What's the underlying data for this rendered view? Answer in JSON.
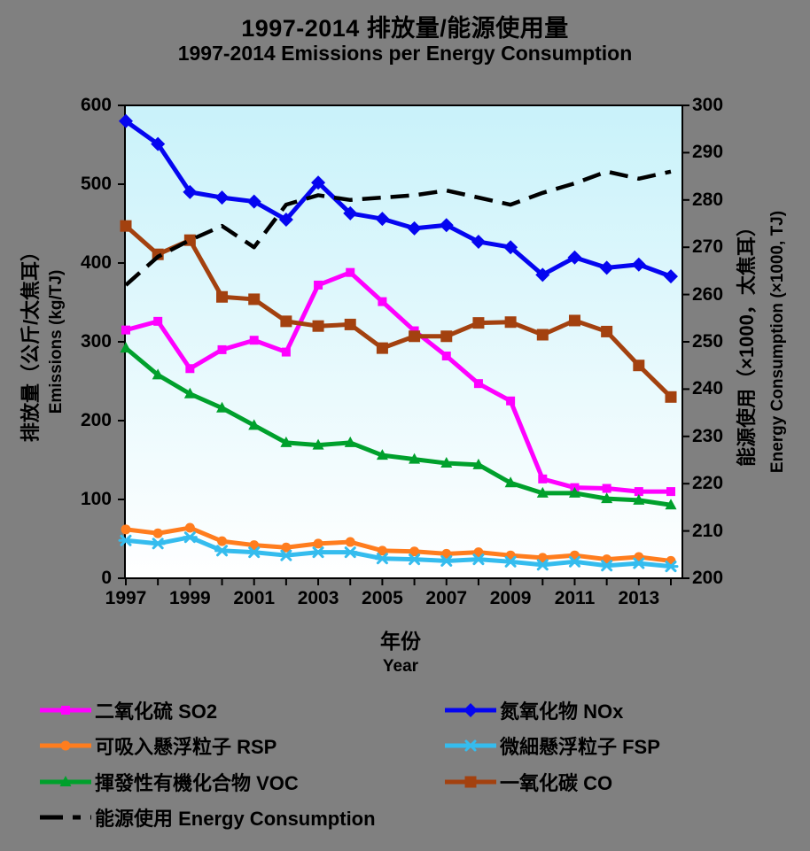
{
  "chart_data": {
    "type": "line",
    "title_zh": "1997-2014 排放量/能源使用量",
    "title_en": "1997-2014 Emissions per Energy Consumption",
    "x_axis_title_zh": "年份",
    "x_axis_title_en": "Year",
    "left_axis_title_zh": "排放量（公斤/太焦耳）",
    "left_axis_title_en": "Emissions (kg/TJ)",
    "right_axis_title_zh": "能源使用（×1000，太焦耳）",
    "right_axis_title_en": "Energy Consumption (×1000, TJ)",
    "left_ylim": [
      0,
      600
    ],
    "right_ylim": [
      200,
      300
    ],
    "left_ticks": [
      0,
      100,
      200,
      300,
      400,
      500,
      600
    ],
    "right_ticks": [
      200,
      210,
      220,
      230,
      240,
      250,
      260,
      270,
      280,
      290,
      300
    ],
    "x": [
      1997,
      1998,
      1999,
      2000,
      2001,
      2002,
      2003,
      2004,
      2005,
      2006,
      2007,
      2008,
      2009,
      2010,
      2011,
      2012,
      2013,
      2014
    ],
    "x_tick_labels": [
      "1997",
      "1999",
      "2001",
      "2003",
      "2005",
      "2007",
      "2009",
      "2011",
      "2013"
    ],
    "grid": false,
    "legend_position": "bottom",
    "plot_bg_top": "#C9F2FA",
    "plot_bg_bottom": "#FFFFFF",
    "outer_bg": "#808080",
    "series": [
      {
        "key": "so2",
        "name": "二氧化硫 SO2",
        "axis": "left",
        "color": "#FF00FF",
        "marker": "square",
        "dashed": false,
        "values": [
          315,
          326,
          266,
          290,
          302,
          287,
          372,
          388,
          351,
          314,
          282,
          247,
          225,
          126,
          115,
          114,
          110,
          110
        ]
      },
      {
        "key": "nox",
        "name": "氮氧化物 NOx",
        "axis": "left",
        "color": "#0505F0",
        "marker": "diamond",
        "dashed": false,
        "values": [
          580,
          551,
          490,
          483,
          478,
          455,
          502,
          463,
          456,
          444,
          448,
          427,
          420,
          385,
          407,
          394,
          398,
          383
        ]
      },
      {
        "key": "rsp",
        "name": "可吸入懸浮粒子 RSP",
        "axis": "left",
        "color": "#FF7D1E",
        "marker": "circle",
        "dashed": false,
        "values": [
          62,
          57,
          64,
          47,
          42,
          39,
          44,
          46,
          35,
          34,
          31,
          33,
          29,
          26,
          29,
          24,
          27,
          22
        ]
      },
      {
        "key": "fsp",
        "name": "微細懸浮粒子 FSP",
        "axis": "left",
        "color": "#35BCEE",
        "marker": "asterisk",
        "dashed": false,
        "values": [
          48,
          44,
          52,
          35,
          33,
          29,
          33,
          33,
          25,
          24,
          22,
          24,
          21,
          17,
          21,
          16,
          19,
          15
        ]
      },
      {
        "key": "voc",
        "name": "揮發性有機化合物 VOC",
        "axis": "left",
        "color": "#00A02C",
        "marker": "triangle",
        "dashed": false,
        "values": [
          292,
          258,
          234,
          216,
          194,
          172,
          169,
          172,
          156,
          151,
          146,
          144,
          121,
          108,
          108,
          101,
          99,
          93
        ]
      },
      {
        "key": "co",
        "name": "一氧化碳 CO",
        "axis": "left",
        "color": "#A3410F",
        "marker": "square-lg",
        "dashed": false,
        "values": [
          447,
          411,
          429,
          357,
          354,
          326,
          320,
          322,
          292,
          307,
          307,
          324,
          325,
          309,
          327,
          313,
          270,
          230
        ]
      },
      {
        "key": "energy",
        "name": "能源使用 Energy Consumption",
        "axis": "right",
        "color": "#000000",
        "marker": "none",
        "dashed": true,
        "values": [
          262,
          268,
          271.5,
          274.5,
          270,
          279,
          281,
          280,
          280.5,
          281,
          282,
          280.5,
          279,
          281.5,
          283.5,
          286,
          284.5,
          286
        ]
      }
    ],
    "legend_layout": [
      [
        "so2",
        "nox"
      ],
      [
        "rsp",
        "fsp"
      ],
      [
        "voc",
        "co"
      ],
      [
        "energy"
      ]
    ]
  }
}
